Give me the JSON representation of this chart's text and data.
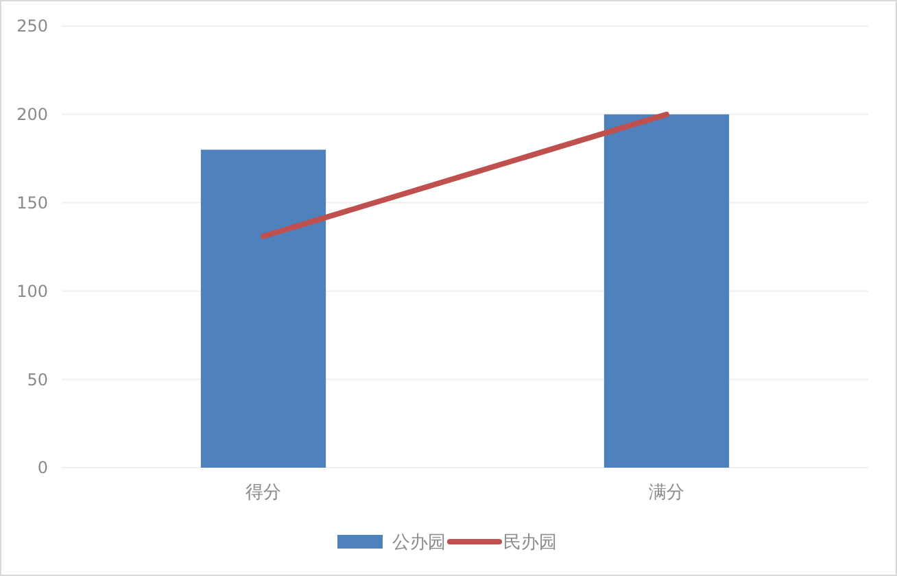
{
  "chart_data": {
    "type": "bar",
    "categories": [
      "得分",
      "满分"
    ],
    "series": [
      {
        "name": "公办园",
        "color": "#4f81bd",
        "values": [
          180,
          200
        ]
      },
      {
        "name": "民办园",
        "type": "line",
        "color": "#c0504d",
        "values": [
          131,
          200
        ]
      }
    ],
    "ylim": [
      0,
      250
    ],
    "yticks": [
      0,
      50,
      100,
      150,
      200,
      250
    ],
    "grid": "y",
    "legend": "bottom"
  }
}
